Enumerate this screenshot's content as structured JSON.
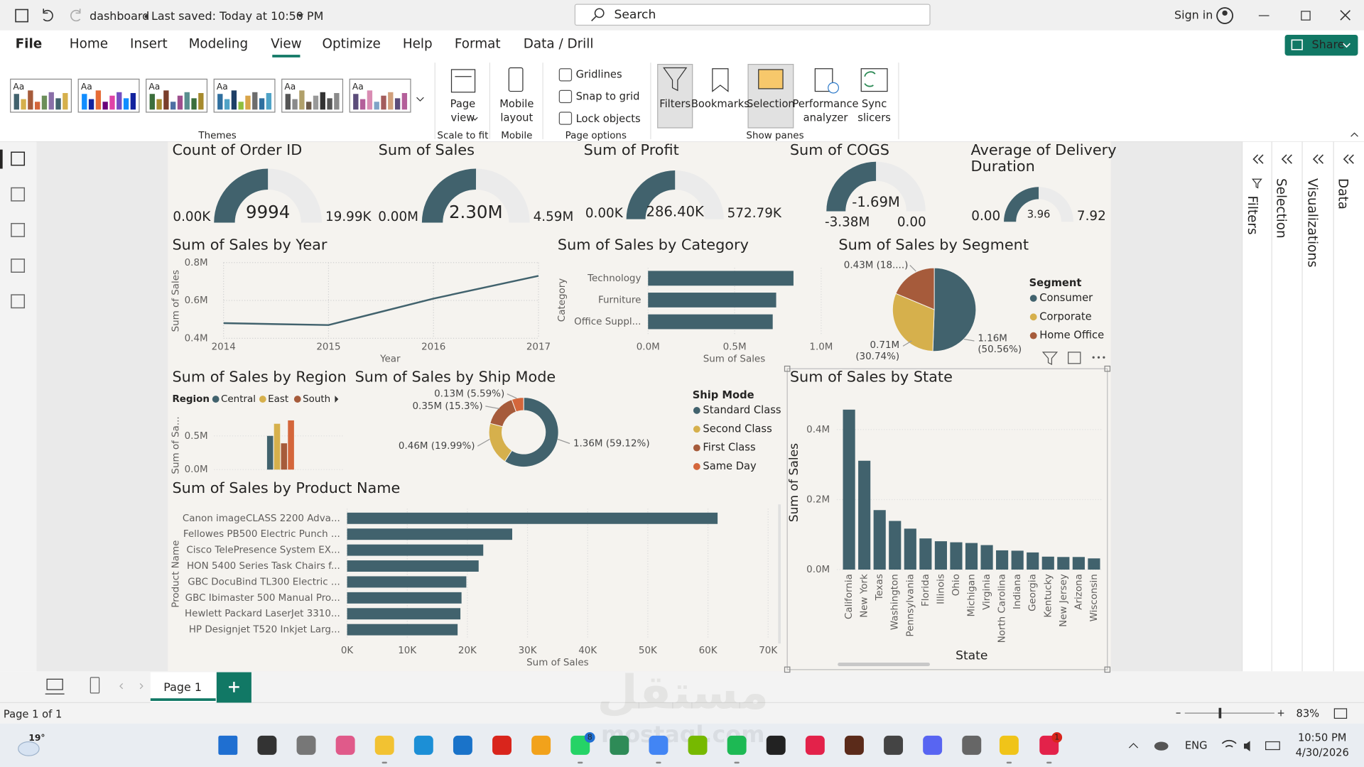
{
  "title_bar": {
    "document": "dashboard",
    "saved": "Last saved: Today at 10:50 PM",
    "search": "Search",
    "sign_in": "Sign in"
  },
  "ribbon": {
    "tabs": [
      "File",
      "Home",
      "Insert",
      "Modeling",
      "View",
      "Optimize",
      "Help",
      "Format",
      "Data / Drill"
    ],
    "share": "Share",
    "themes": {
      "items": [
        "Aa",
        "Aa",
        "Aa",
        "Aa",
        "Aa",
        "Aa"
      ],
      "label": "Themes"
    },
    "scale": {
      "button": [
        "Page",
        "view"
      ],
      "label": "Scale to fit"
    },
    "mobile": {
      "button": [
        "Mobile",
        "layout"
      ],
      "label": "Mobile"
    },
    "page_options": {
      "checks": [
        "Gridlines",
        "Snap to grid",
        "Lock objects"
      ],
      "label": "Page options"
    },
    "show_panes": {
      "buttons": [
        [
          "Filters"
        ],
        [
          "Bookmarks"
        ],
        [
          "Selection"
        ],
        [
          "Performance",
          "analyzer"
        ],
        [
          "Sync",
          "slicers"
        ]
      ],
      "label": "Show panes"
    }
  },
  "panes": [
    "Filters",
    "Selection",
    "Visualizations",
    "Data"
  ],
  "visuals": {
    "gauges": [
      {
        "title": [
          "Count of Order ID"
        ],
        "value": 9994,
        "min": 0,
        "min_label": "0.00K",
        "max": 19990,
        "max_label": "19.99K"
      },
      {
        "title": [
          "Sum of Sales"
        ],
        "value": 2300000,
        "value_label": "2.30M",
        "min": 0,
        "min_label": "0.00M",
        "max": 4590000,
        "max_label": "4.59M"
      },
      {
        "title": [
          "Sum of Profit"
        ],
        "value": 286400,
        "value_label": "286.40K",
        "min": 0,
        "min_label": "0.00K",
        "max": 572790,
        "max_label": "572.79K"
      },
      {
        "title": [
          "Sum of COGS"
        ],
        "value": -1690000,
        "value_label": "-1.69M",
        "min": -3380000,
        "min_label": "-3.38M",
        "max": 0,
        "max_label": "0.00"
      },
      {
        "title": [
          "Average of Delivery",
          "Duration"
        ],
        "value": 3.96,
        "min": 0,
        "min_label": "0.00",
        "max": 7.92
      }
    ],
    "by_year": {
      "type": "line",
      "title": "Sum of Sales by Year",
      "x": [
        2014,
        2015,
        2016,
        2017
      ],
      "values": [
        0.48,
        0.47,
        0.61,
        0.73
      ],
      "color": "#41626d",
      "xlim": [
        2014,
        2017
      ],
      "xticks": [
        2014,
        2015,
        2016,
        2017
      ],
      "ylim": [
        0.4,
        0.8
      ],
      "yticks": [
        {
          "value": 0.4,
          "label": "0.4M"
        },
        {
          "value": 0.6,
          "label": "0.6M"
        },
        {
          "value": 0.8,
          "label": "0.8M"
        }
      ],
      "x_label": "Year",
      "y_label": "Sum of Sales",
      "grid": true
    },
    "by_category": {
      "type": "bar",
      "title": "Sum of Sales by Category",
      "categories": [
        "Technology",
        "Furniture",
        "Office Suppl..."
      ],
      "values": [
        0.84,
        0.74,
        0.72
      ],
      "color": "#41626d",
      "xlim": [
        0,
        1.0
      ],
      "xticks": [
        {
          "value": 0,
          "label": "0.0M"
        },
        {
          "value": 0.5,
          "label": "0.5M"
        },
        {
          "value": 1.0,
          "label": "1.0M"
        }
      ],
      "x_label": "Sum of Sales",
      "y_label": "Category"
    },
    "by_segment": {
      "type": "pie",
      "title": "Sum of Sales by Segment",
      "legend_title": "Segment",
      "categories": [
        "Consumer",
        "Corporate",
        "Home Office"
      ],
      "values": [
        50.56,
        30.74,
        18.7
      ],
      "value_labels": [
        [
          "1.16M",
          "(50.56%)"
        ],
        [
          "0.71M",
          "(30.74%)"
        ],
        [
          "0.43M (18....)"
        ]
      ],
      "colors": [
        "#41626d",
        "#d6b04c",
        "#a65b3b"
      ]
    },
    "by_region": {
      "type": "bar",
      "title": "Sum of Sales by Region",
      "legend_title": "Region",
      "series": [
        {
          "name": "Central",
          "color": "#41626d",
          "values": [
            0.5
          ]
        },
        {
          "name": "East",
          "color": "#d6b04c",
          "values": [
            0.68
          ]
        },
        {
          "name": "South",
          "color": "#a65b3b",
          "values": [
            0.39
          ]
        },
        {
          "name": null,
          "color": "#d4663b",
          "values": [
            0.73
          ]
        }
      ],
      "ylim": [
        0,
        0.8
      ],
      "yticks": [
        {
          "value": 0,
          "label": "0.0M"
        },
        {
          "value": 0.5,
          "label": "0.5M"
        }
      ],
      "y_label": "Sum of Sa..."
    },
    "by_ship_mode": {
      "type": "donut",
      "title": "Sum of Sales by Ship Mode",
      "legend_title": "Ship Mode",
      "categories": [
        "Standard Class",
        "Second Class",
        "First Class",
        "Same Day"
      ],
      "values": [
        59.12,
        19.99,
        15.3,
        5.59
      ],
      "value_labels": [
        "1.36M (59.12%)",
        "0.46M (19.99%)",
        "0.35M (15.3%)",
        "0.13M (5.59%)"
      ],
      "colors": [
        "#41626d",
        "#d6b04c",
        "#a65b3b",
        "#d4663b"
      ]
    },
    "by_product": {
      "type": "bar",
      "title": "Sum of Sales by Product Name",
      "categories": [
        "Canon imageCLASS 2200 Adva...",
        "Fellowes PB500 Electric Punch ...",
        "Cisco TelePresence System EX...",
        "HON 5400 Series Task Chairs f...",
        "GBC DocuBind TL300 Electric ...",
        "GBC Ibimaster 500 Manual Pro...",
        "Hewlett Packard LaserJet 3310...",
        "HP Designjet T520 Inkjet Larg..."
      ],
      "values": [
        61600,
        27453,
        22638,
        21871,
        19823,
        19025,
        18840,
        18375
      ],
      "color": "#41626d",
      "xlim": [
        0,
        70000
      ],
      "xticks": [
        {
          "value": 0,
          "label": "0K"
        },
        {
          "value": 10000,
          "label": "10K"
        },
        {
          "value": 20000,
          "label": "20K"
        },
        {
          "value": 30000,
          "label": "30K"
        },
        {
          "value": 40000,
          "label": "40K"
        },
        {
          "value": 50000,
          "label": "50K"
        },
        {
          "value": 60000,
          "label": "60K"
        },
        {
          "value": 70000,
          "label": "70K"
        }
      ],
      "x_label": "Sum of Sales",
      "y_label": "Product Name"
    },
    "by_state": {
      "type": "column",
      "title": "Sum of Sales by State",
      "categories": [
        "California",
        "New York",
        "Texas",
        "Washington",
        "Pennsylvania",
        "Florida",
        "Illinois",
        "Ohio",
        "Michigan",
        "Virginia",
        "North Carolina",
        "Indiana",
        "Georgia",
        "Kentucky",
        "New Jersey",
        "Arizona",
        "Wisconsin"
      ],
      "values": [
        0.457,
        0.311,
        0.17,
        0.139,
        0.117,
        0.089,
        0.081,
        0.078,
        0.076,
        0.07,
        0.055,
        0.054,
        0.049,
        0.037,
        0.036,
        0.036,
        0.032
      ],
      "color": "#41626d",
      "ylim": [
        0,
        0.5
      ],
      "yticks": [
        {
          "value": 0,
          "label": "0.0M"
        },
        {
          "value": 0.2,
          "label": "0.2M"
        },
        {
          "value": 0.4,
          "label": "0.4M"
        }
      ],
      "x_label": "State",
      "y_label": "Sum of Sales"
    }
  },
  "pages": [
    "Page 1"
  ],
  "status": "Page 1 of 1",
  "zoom": "83%",
  "watermark": [
    "مستقل",
    "mostaql.com"
  ],
  "taskbar": {
    "weather": "19°",
    "badges": [
      "8",
      "1"
    ],
    "language": "ENG",
    "time": "10:50 PM",
    "date": "4/30/2026"
  }
}
